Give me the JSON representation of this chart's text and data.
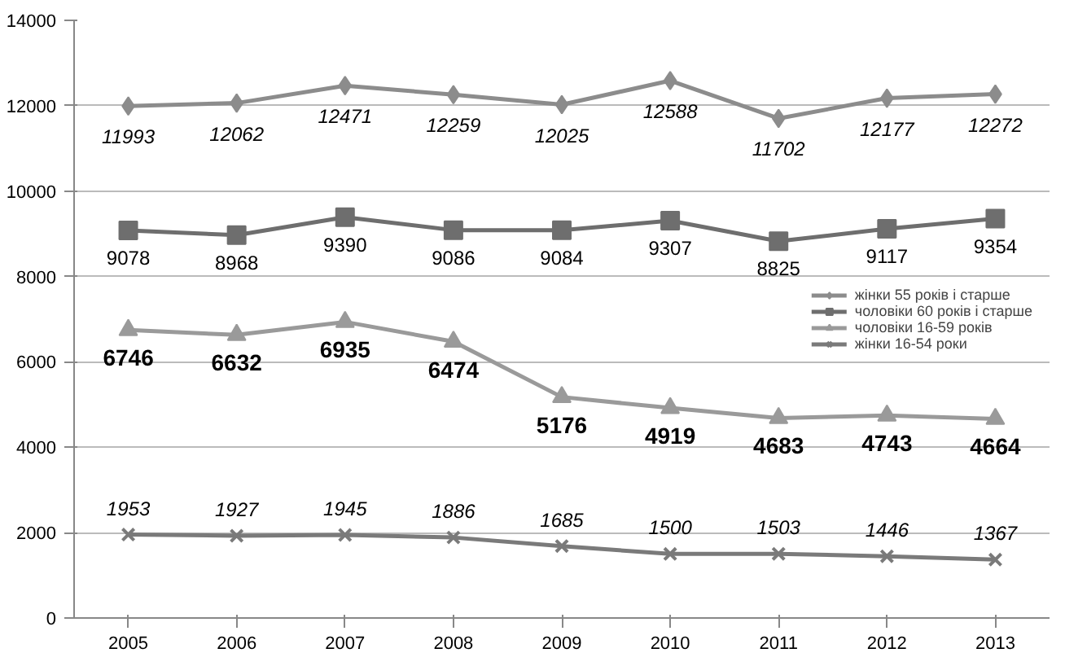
{
  "chart_data": {
    "type": "line",
    "categories": [
      "2005",
      "2006",
      "2007",
      "2008",
      "2009",
      "2010",
      "2011",
      "2012",
      "2013"
    ],
    "ylim": [
      0,
      14000
    ],
    "yticks": [
      0,
      2000,
      4000,
      6000,
      8000,
      10000,
      12000,
      14000
    ],
    "grid": "y",
    "legend": "right",
    "data_labels": true,
    "series": [
      {
        "name": "жінки 55 років і старше",
        "color": "#8c8c8c",
        "marker": "diamond",
        "values": [
          11993,
          12062,
          12471,
          12259,
          12025,
          12588,
          11702,
          12177,
          12272
        ]
      },
      {
        "name": "чоловіки 60 років і старше",
        "color": "#6e6e6e",
        "marker": "square",
        "values": [
          9078,
          8968,
          9390,
          9086,
          9084,
          9307,
          8825,
          9117,
          9354
        ]
      },
      {
        "name": "чоловіки 16-59 років",
        "color": "#9a9a9a",
        "marker": "triangle",
        "values": [
          6746,
          6632,
          6935,
          6474,
          5176,
          4919,
          4683,
          4743,
          4664
        ]
      },
      {
        "name": "жінки 16-54 роки",
        "color": "#7a7a7a",
        "marker": "cross",
        "values": [
          1953,
          1927,
          1945,
          1886,
          1685,
          1500,
          1503,
          1446,
          1367
        ]
      }
    ]
  }
}
